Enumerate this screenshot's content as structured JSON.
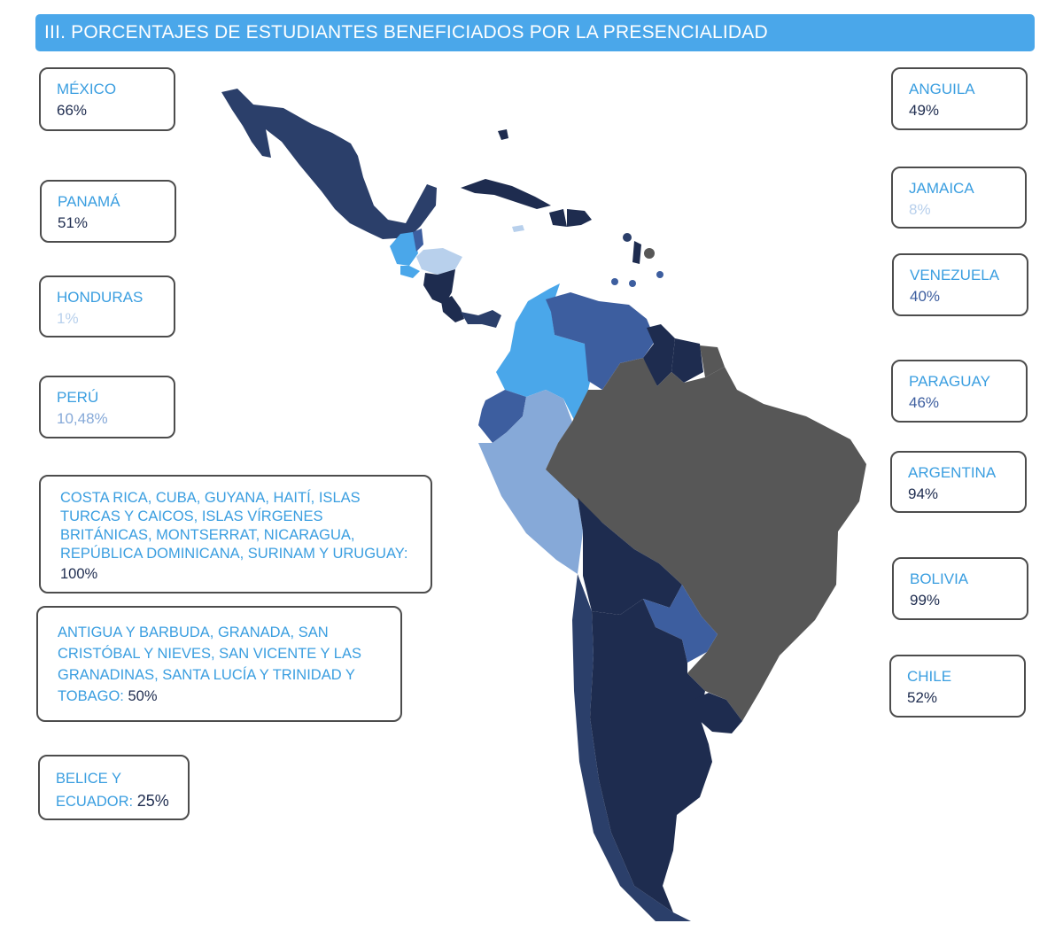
{
  "title": "III. PORCENTAJES DE ESTUDIANTES BENEFICIADOS POR LA PRESENCIALIDAD",
  "colors": {
    "accent": "#4aa7ea",
    "label_blue": "#3a9ee0",
    "navy": "#1e2c4f",
    "mid_blue": "#3d5e9f",
    "sky": "#4aa7ea",
    "light": "#b8d0ec",
    "grey": "#575757"
  },
  "cards": {
    "mexico": {
      "name": "MÉXICO",
      "value": "66%",
      "value_color": "#1e2c4f"
    },
    "panama": {
      "name": "PANAMÁ",
      "value": "51%",
      "value_color": "#1e2c4f"
    },
    "honduras": {
      "name": "HONDURAS",
      "value": "1%",
      "value_color": "#b8d0ec"
    },
    "peru": {
      "name": "PERÚ",
      "value": "10,48%",
      "value_color": "#86a9d8"
    },
    "anguila": {
      "name": "ANGUILA",
      "value": "49%",
      "value_color": "#1e2c4f"
    },
    "jamaica": {
      "name": "JAMAICA",
      "value": "8%",
      "value_color": "#b8d0ec"
    },
    "venezuela": {
      "name": "VENEZUELA",
      "value": "40%",
      "value_color": "#3d5e9f"
    },
    "paraguay": {
      "name": "PARAGUAY",
      "value": "46%",
      "value_color": "#3d5e9f"
    },
    "argentina": {
      "name": "ARGENTINA",
      "value": "94%",
      "value_color": "#1e2c4f"
    },
    "bolivia": {
      "name": "BOLIVIA",
      "value": "99%",
      "value_color": "#1e2c4f"
    },
    "chile": {
      "name": "CHILE",
      "value": "52%",
      "value_color": "#1e2c4f"
    }
  },
  "groups": {
    "hundred": {
      "names": "COSTA RICA, CUBA, GUYANA, HAITÍ, ISLAS TURCAS Y CAICOS, ISLAS VÍRGENES BRITÁNICAS, MONTSERRAT, NICARAGUA, REPÚBLICA DOMINICANA, SURINAM Y URUGUAY:",
      "value": "100%"
    },
    "fifty": {
      "names": "ANTIGUA Y BARBUDA, GRANADA, SAN CRISTÓBAL Y NIEVES, SAN VICENTE Y LAS GRANADINAS, SANTA LUCÍA Y TRINIDAD Y TOBAGO:",
      "value": "50%"
    },
    "twentyfive": {
      "names": "BELICE Y ECUADOR:",
      "value": "25%"
    }
  }
}
